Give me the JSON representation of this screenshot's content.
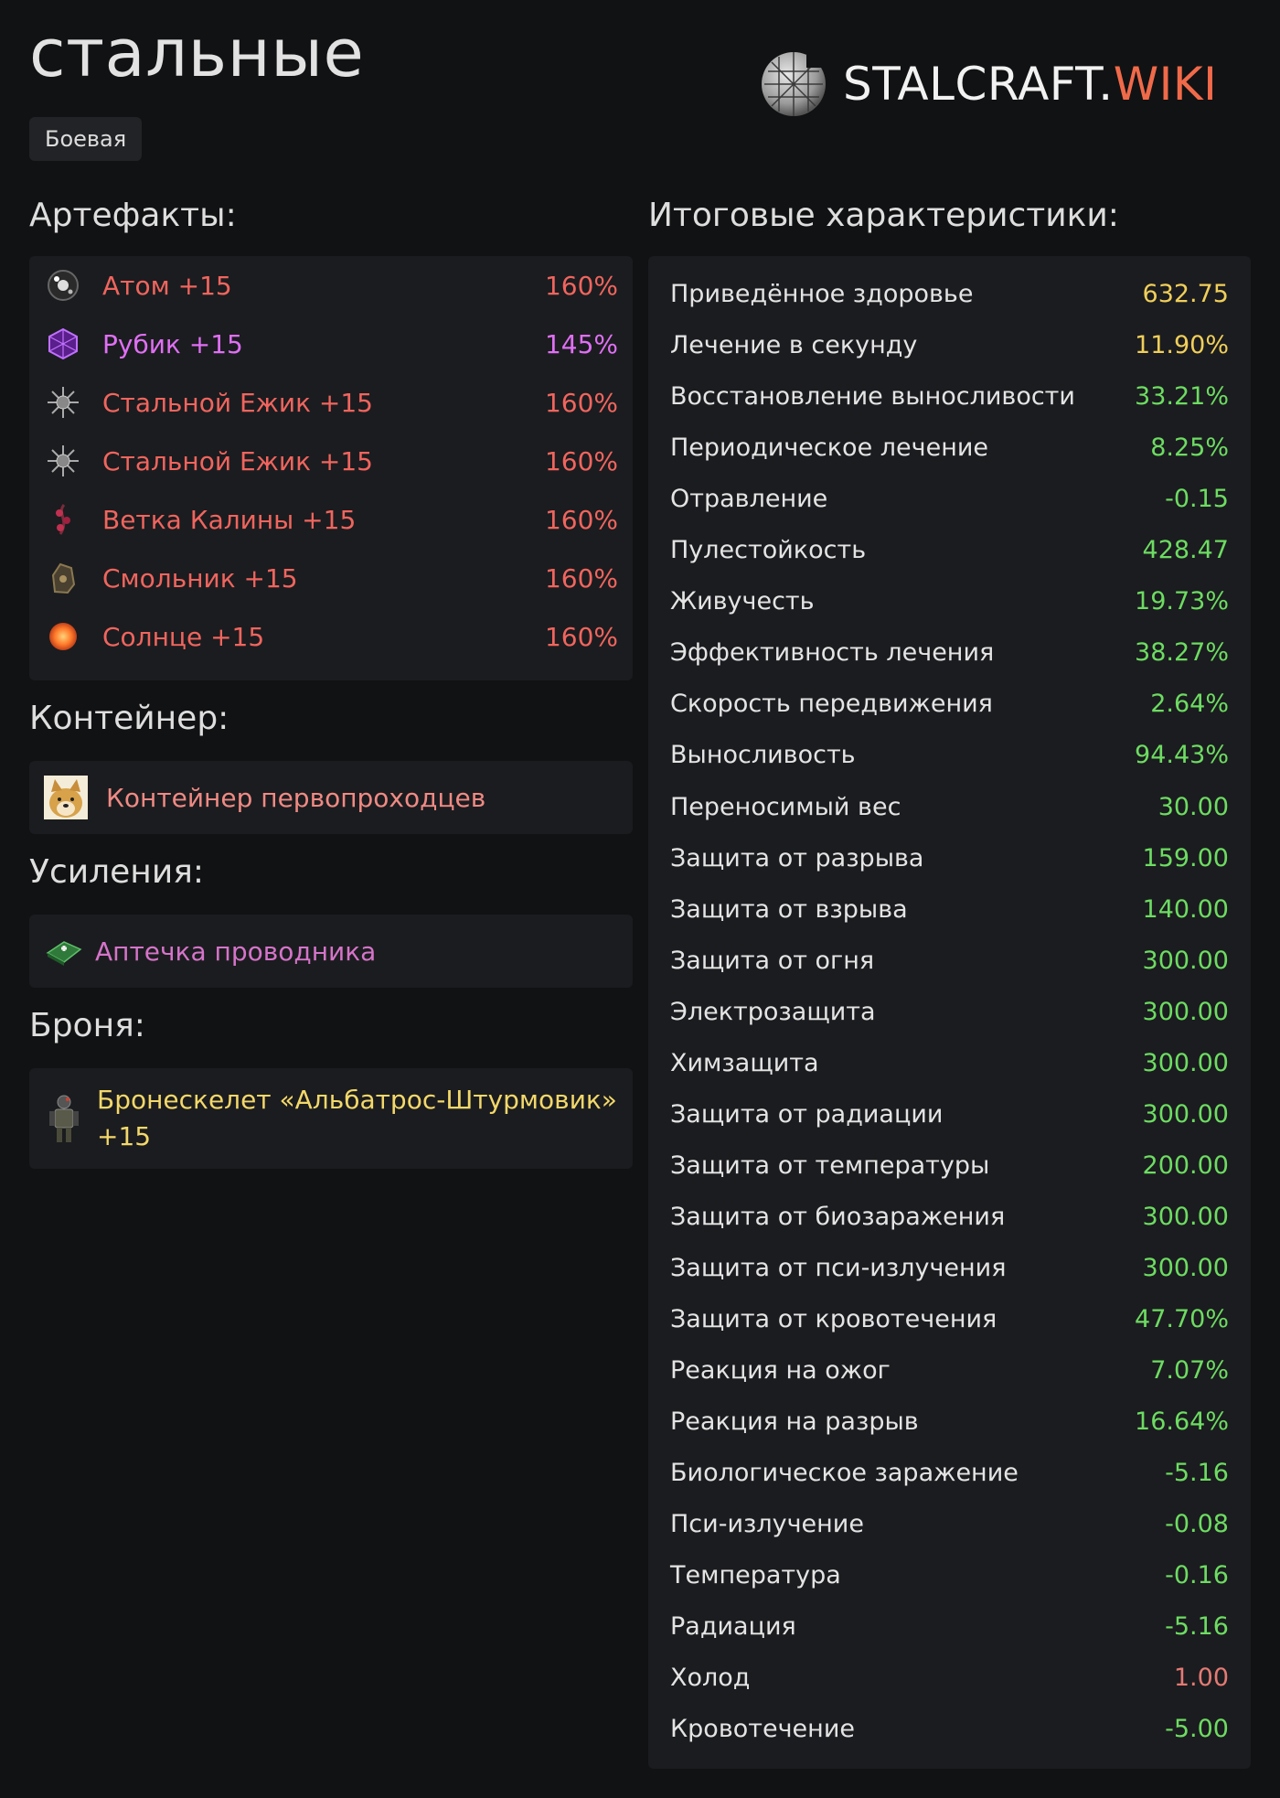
{
  "header": {
    "title": "стальные",
    "tag": "Боевая",
    "logo_main": "STALCRAFT.",
    "logo_accent": "WIKI"
  },
  "artifacts": {
    "heading": "Артефакты:",
    "items": [
      {
        "name": "Атом +15",
        "percent": "160%",
        "icon": "atom-icon"
      },
      {
        "name": "Рубик +15",
        "percent": "145%",
        "icon": "cube-icon"
      },
      {
        "name": "Стальной Ежик +15",
        "percent": "160%",
        "icon": "spiky-ball-icon"
      },
      {
        "name": "Стальной Ежик +15",
        "percent": "160%",
        "icon": "spiky-ball-icon"
      },
      {
        "name": "Ветка Калины +15",
        "percent": "160%",
        "icon": "berry-branch-icon"
      },
      {
        "name": "Смольник +15",
        "percent": "160%",
        "icon": "resin-icon"
      },
      {
        "name": "Солнце +15",
        "percent": "160%",
        "icon": "sun-icon"
      }
    ]
  },
  "container": {
    "heading": "Контейнер:",
    "name": "Контейнер первопроходцев",
    "icon": "doge-icon"
  },
  "boosts": {
    "heading": "Усиления:",
    "name": "Аптечка проводника",
    "icon": "medkit-icon"
  },
  "armor": {
    "heading": "Броня:",
    "name_line1": "Бронескелет «Альбатрос-Штурмовик»",
    "name_line2": "+15",
    "icon": "armor-icon"
  },
  "stats": {
    "heading": "Итоговые характеристики:",
    "items": [
      {
        "label": "Приведённое здоровье",
        "value": "632.75",
        "color": "#f0cf5a"
      },
      {
        "label": "Лечение в секунду",
        "value": "11.90%",
        "color": "#f0cf5a"
      },
      {
        "label": "Восстановление выносливости",
        "value": "33.21%",
        "color": "#6ddc62"
      },
      {
        "label": "Периодическое лечение",
        "value": "8.25%",
        "color": "#6ddc62"
      },
      {
        "label": "Отравление",
        "value": "-0.15",
        "color": "#6ddc62"
      },
      {
        "label": "Пулестойкость",
        "value": "428.47",
        "color": "#6ddc62"
      },
      {
        "label": "Живучесть",
        "value": "19.73%",
        "color": "#6ddc62"
      },
      {
        "label": "Эффективность лечения",
        "value": "38.27%",
        "color": "#6ddc62"
      },
      {
        "label": "Скорость передвижения",
        "value": "2.64%",
        "color": "#6ddc62"
      },
      {
        "label": "Выносливость",
        "value": "94.43%",
        "color": "#6ddc62"
      },
      {
        "label": "Переносимый вес",
        "value": "30.00",
        "color": "#6ddc62"
      },
      {
        "label": "Защита от разрыва",
        "value": "159.00",
        "color": "#6ddc62"
      },
      {
        "label": "Защита от взрыва",
        "value": "140.00",
        "color": "#6ddc62"
      },
      {
        "label": "Защита от огня",
        "value": "300.00",
        "color": "#6ddc62"
      },
      {
        "label": "Электрозащита",
        "value": "300.00",
        "color": "#6ddc62"
      },
      {
        "label": "Химзащита",
        "value": "300.00",
        "color": "#6ddc62"
      },
      {
        "label": "Защита от радиации",
        "value": "300.00",
        "color": "#6ddc62"
      },
      {
        "label": "Защита от температуры",
        "value": "200.00",
        "color": "#6ddc62"
      },
      {
        "label": "Защита от биозаражения",
        "value": "300.00",
        "color": "#6ddc62"
      },
      {
        "label": "Защита от пси-излучения",
        "value": "300.00",
        "color": "#6ddc62"
      },
      {
        "label": "Защита от кровотечения",
        "value": "47.70%",
        "color": "#6ddc62"
      },
      {
        "label": "Реакция на ожог",
        "value": "7.07%",
        "color": "#6ddc62"
      },
      {
        "label": "Реакция на разрыв",
        "value": "16.64%",
        "color": "#6ddc62"
      },
      {
        "label": "Биологическое заражение",
        "value": "-5.16",
        "color": "#6ddc62"
      },
      {
        "label": "Пси-излучение",
        "value": "-0.08",
        "color": "#6ddc62"
      },
      {
        "label": "Температура",
        "value": "-0.16",
        "color": "#6ddc62"
      },
      {
        "label": "Радиация",
        "value": "-5.16",
        "color": "#6ddc62"
      },
      {
        "label": "Холод",
        "value": "1.00",
        "color": "#e47a74"
      },
      {
        "label": "Кровотечение",
        "value": "-5.00",
        "color": "#6ddc62"
      }
    ]
  }
}
